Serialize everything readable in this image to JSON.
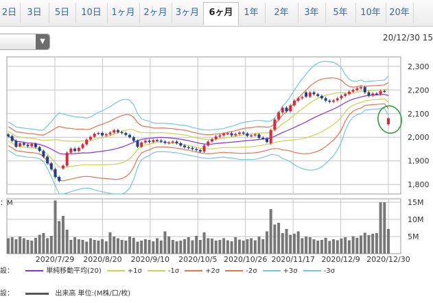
{
  "tabs": [
    "2日",
    "3日",
    "5日",
    "10日",
    "1ヶ月",
    "2ヶ月",
    "3ヶ月",
    "6ヶ月",
    "1年",
    "2年",
    "3年",
    "5年",
    "10年",
    "20年"
  ],
  "active_tab": "6ヶ月",
  "date_label": "20/12/30 15",
  "volume_label": "：M",
  "legend1": {
    "prefix": "設：",
    "items": [
      {
        "label": "単純移動平均(20)",
        "color": "#8a2be2"
      },
      {
        "label": "+1σ",
        "color": "#c8d44a"
      },
      {
        "label": "-1σ",
        "color": "#c8d44a"
      },
      {
        "label": "+2σ",
        "color": "#e8704a"
      },
      {
        "label": "-2σ",
        "color": "#e8704a"
      },
      {
        "label": "+3σ",
        "color": "#6ec8e0"
      },
      {
        "label": "-3σ",
        "color": "#6ec8e0"
      }
    ]
  },
  "legend2": {
    "prefix": "設：",
    "label": "出来高 単位:(M株/口/枚)",
    "color": "#555555"
  },
  "colors": {
    "up": "#d6293a",
    "down": "#1f3f8c",
    "volume": "#777777",
    "grid": "#c4c4c4",
    "annotation": "#2e9e3a"
  },
  "chart_data": [
    {
      "type": "candlestick",
      "yticks": [
        2300,
        2200,
        2100,
        2000,
        1900,
        1800
      ],
      "ylim": [
        1760,
        2340
      ],
      "xticks": [
        "2020/7/29",
        "2020/8/20",
        "2020/9/10",
        "2020/10/5",
        "2020/10/26",
        "2020/11/17",
        "2020/12/9",
        "2020/12/30"
      ],
      "close": [
        2005,
        1985,
        1960,
        1975,
        1968,
        1962,
        1972,
        1958,
        1942,
        1918,
        1890,
        1865,
        1832,
        1815,
        1880,
        1935,
        1952,
        1942,
        1955,
        1970,
        1990,
        2002,
        2015,
        2018,
        2008,
        2013,
        2020,
        2030,
        2022,
        2018,
        2010,
        2000,
        1985,
        1960,
        1978,
        1985,
        1980,
        1988,
        1986,
        1982,
        1976,
        1978,
        1982,
        1975,
        1965,
        1958,
        1955,
        1950,
        1946,
        1940,
        1965,
        1982,
        1992,
        2003,
        2008,
        2015,
        2017,
        2008,
        2014,
        2020,
        2016,
        2006,
        2008,
        2012,
        1998,
        1995,
        1980,
        2030,
        2075,
        2105,
        2125,
        2110,
        2135,
        2155,
        2165,
        2170,
        2172,
        2190,
        2182,
        2175,
        2165,
        2155,
        2150,
        2156,
        2165,
        2175,
        2183,
        2193,
        2200,
        2207,
        2212,
        2190,
        2176,
        2185,
        2183,
        2196,
        2194,
        2080
      ],
      "open": [
        2012,
        2005,
        1985,
        1962,
        1975,
        1968,
        1962,
        1972,
        1958,
        1942,
        1918,
        1890,
        1865,
        1832,
        1868,
        1880,
        1935,
        1952,
        1942,
        1955,
        1970,
        1990,
        2002,
        2015,
        2018,
        2008,
        2013,
        2020,
        2030,
        2022,
        2018,
        2010,
        2000,
        1985,
        1960,
        1978,
        1985,
        1980,
        1988,
        1986,
        1982,
        1976,
        1978,
        1982,
        1975,
        1965,
        1958,
        1955,
        1950,
        1946,
        1940,
        1965,
        1982,
        1992,
        2003,
        2008,
        2015,
        2017,
        2008,
        2014,
        2020,
        2016,
        2006,
        2008,
        2012,
        1998,
        1995,
        1975,
        2032,
        2075,
        2105,
        2125,
        2110,
        2135,
        2155,
        2165,
        2190,
        2172,
        2190,
        2182,
        2175,
        2165,
        2155,
        2150,
        2156,
        2165,
        2175,
        2183,
        2193,
        2200,
        2207,
        2212,
        2190,
        2176,
        2185,
        2183,
        2196,
        2055
      ],
      "volume_ylim": [
        0,
        16
      ],
      "volume_yticks": [
        {
          "v": 15,
          "label": "15M"
        },
        {
          "v": 10,
          "label": "10M"
        },
        {
          "v": 5,
          "label": "5M"
        }
      ],
      "volume": [
        4.5,
        4.8,
        4.2,
        5.0,
        4.5,
        4.0,
        3.8,
        4.6,
        5.5,
        6.0,
        4.5,
        5.2,
        15.5,
        9.5,
        11.0,
        7.0,
        4.0,
        4.8,
        4.2,
        4.0,
        3.5,
        4.5,
        4.0,
        3.8,
        4.2,
        3.6,
        6.2,
        5.0,
        4.5,
        4.0,
        3.8,
        5.0,
        4.6,
        3.5,
        3.8,
        4.2,
        4.0,
        3.6,
        4.5,
        3.8,
        6.5,
        5.0,
        4.0,
        3.6,
        3.8,
        4.2,
        4.8,
        3.9,
        5.2,
        4.0,
        6.2,
        4.5,
        4.4,
        3.8,
        4.0,
        4.5,
        3.9,
        3.6,
        4.8,
        4.1,
        3.8,
        4.2,
        4.5,
        3.9,
        5.0,
        4.2,
        6.5,
        13.0,
        8.5,
        9.0,
        6.0,
        7.2,
        5.5,
        5.8,
        6.5,
        4.5,
        5.0,
        4.8,
        4.2,
        3.8,
        4.0,
        4.6,
        3.7,
        4.2,
        3.9,
        4.4,
        4.8,
        3.9,
        5.1,
        4.6,
        5.3,
        6.1,
        5.4,
        5.8,
        6.0,
        15.0,
        15.0,
        7.2
      ],
      "annotation": "circle"
    }
  ]
}
